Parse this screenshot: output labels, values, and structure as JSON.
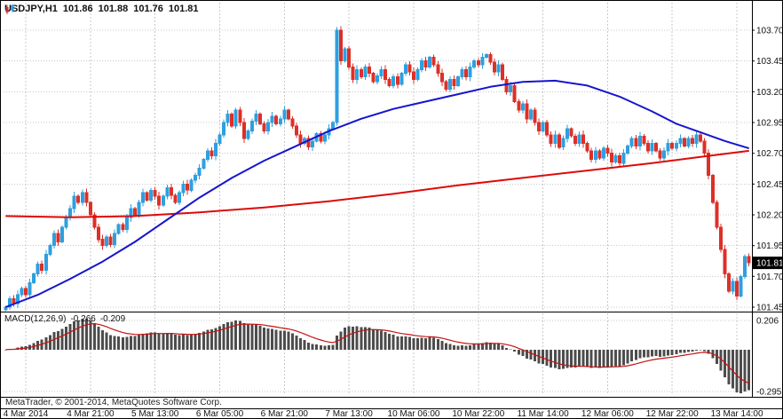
{
  "legend": {
    "symbol_period": "USDJPY,H1",
    "open": "101.86",
    "high": "101.88",
    "low": "101.76",
    "close": "101.81"
  },
  "statusbar": {
    "text": "MetaTrader, © 2001-2014, MetaQuotes Software Corp."
  },
  "price_axis": {
    "ticks": [
      "103.70",
      "103.45",
      "103.20",
      "102.95",
      "102.70",
      "102.45",
      "102.20",
      "101.95",
      "101.70",
      "101.45"
    ],
    "current": "101.81"
  },
  "time_axis": {
    "labels": [
      "4 Mar 2014",
      "4 Mar 21:00",
      "5 Mar 13:00",
      "6 Mar 05:00",
      "6 Mar 21:00",
      "7 Mar 13:00",
      "10 Mar 06:00",
      "10 Mar 22:00",
      "11 Mar 14:00",
      "12 Mar 06:00",
      "12 Mar 22:00",
      "13 Mar 14:00"
    ],
    "indices": [
      5,
      21,
      37,
      53,
      69,
      85,
      101,
      117,
      133,
      149,
      165,
      181
    ]
  },
  "macd_panel": {
    "label": "MACD(12,26,9)",
    "value_main": "-0.266",
    "value_signal": "-0.209"
  },
  "colors": {
    "up": "#2e9fdf",
    "down": "#dc3028",
    "ma_blue": "#1515cf",
    "ma_red": "#dc0a0a",
    "grid": "#c8c8c8",
    "macd_bar": "#4d4d4d",
    "macd_signal": "#c81010",
    "badge_bg": "#000000",
    "badge_text": "#ffffff",
    "border": "#000000",
    "text": "#111111"
  },
  "chart_data": [
    {
      "type": "candlestick",
      "title": "USDJPY,H1",
      "start": "4 Mar 2014 00:00",
      "interval_hours": 1,
      "ylim": [
        101.45,
        103.7
      ],
      "closes": [
        101.45,
        101.52,
        101.48,
        101.55,
        101.6,
        101.55,
        101.65,
        101.72,
        101.8,
        101.75,
        101.88,
        101.95,
        102.05,
        101.98,
        102.1,
        102.18,
        102.25,
        102.35,
        102.3,
        102.38,
        102.3,
        102.2,
        102.1,
        102.0,
        101.95,
        102.02,
        101.96,
        102.05,
        102.12,
        102.08,
        102.18,
        102.25,
        102.2,
        102.3,
        102.38,
        102.32,
        102.4,
        102.35,
        102.28,
        102.35,
        102.42,
        102.36,
        102.3,
        102.38,
        102.45,
        102.4,
        102.48,
        102.52,
        102.58,
        102.65,
        102.72,
        102.68,
        102.78,
        102.85,
        102.95,
        103.02,
        102.92,
        103.05,
        102.95,
        102.82,
        102.88,
        102.96,
        103.02,
        102.94,
        102.88,
        102.95,
        103.0,
        102.94,
        102.98,
        103.05,
        102.98,
        102.92,
        102.85,
        102.78,
        102.82,
        102.75,
        102.8,
        102.86,
        102.8,
        102.85,
        102.9,
        102.95,
        103.7,
        103.45,
        103.55,
        103.4,
        103.3,
        103.38,
        103.32,
        103.4,
        103.35,
        103.28,
        103.33,
        103.38,
        103.3,
        103.25,
        103.32,
        103.26,
        103.35,
        103.42,
        103.36,
        103.3,
        103.38,
        103.45,
        103.4,
        103.48,
        103.42,
        103.35,
        103.28,
        103.22,
        103.3,
        103.25,
        103.32,
        103.38,
        103.32,
        103.4,
        103.45,
        103.42,
        103.48,
        103.5,
        103.44,
        103.36,
        103.42,
        103.3,
        103.2,
        103.25,
        103.12,
        103.05,
        103.1,
        102.98,
        103.05,
        102.95,
        102.88,
        102.95,
        102.85,
        102.78,
        102.85,
        102.75,
        102.82,
        102.9,
        102.84,
        102.78,
        102.85,
        102.78,
        102.72,
        102.65,
        102.72,
        102.66,
        102.74,
        102.7,
        102.63,
        102.68,
        102.62,
        102.7,
        102.76,
        102.82,
        102.76,
        102.84,
        102.78,
        102.72,
        102.78,
        102.72,
        102.66,
        102.72,
        102.78,
        102.74,
        102.78,
        102.82,
        102.76,
        102.82,
        102.78,
        102.85,
        102.8,
        102.7,
        102.52,
        102.3,
        102.1,
        101.92,
        101.72,
        101.58,
        101.66,
        101.54,
        101.7,
        101.86,
        101.81
      ],
      "moving_averages": [
        {
          "name": "ma-red-slow",
          "color": "#dc0a0a",
          "points": [
            [
              0,
              102.19
            ],
            [
              16,
              102.18
            ],
            [
              32,
              102.19
            ],
            [
              48,
              102.22
            ],
            [
              64,
              102.26
            ],
            [
              80,
              102.31
            ],
            [
              96,
              102.37
            ],
            [
              112,
              102.44
            ],
            [
              128,
              102.5
            ],
            [
              144,
              102.56
            ],
            [
              160,
              102.62
            ],
            [
              172,
              102.67
            ],
            [
              184,
              102.72
            ]
          ]
        },
        {
          "name": "ma-blue",
          "color": "#1515cf",
          "points": [
            [
              0,
              101.45
            ],
            [
              8,
              101.55
            ],
            [
              16,
              101.68
            ],
            [
              24,
              101.82
            ],
            [
              32,
              101.98
            ],
            [
              40,
              102.16
            ],
            [
              48,
              102.34
            ],
            [
              56,
              102.5
            ],
            [
              64,
              102.64
            ],
            [
              72,
              102.76
            ],
            [
              80,
              102.88
            ],
            [
              88,
              102.98
            ],
            [
              96,
              103.06
            ],
            [
              104,
              103.12
            ],
            [
              112,
              103.18
            ],
            [
              120,
              103.24
            ],
            [
              128,
              103.28
            ],
            [
              136,
              103.29
            ],
            [
              144,
              103.25
            ],
            [
              152,
              103.16
            ],
            [
              160,
              103.04
            ],
            [
              166,
              102.94
            ],
            [
              172,
              102.87
            ],
            [
              178,
              102.8
            ],
            [
              184,
              102.74
            ]
          ]
        }
      ]
    },
    {
      "type": "bar",
      "name": "MACD(12,26,9)",
      "ylim": [
        -0.315,
        0.25
      ],
      "scale_labels": [
        "0.206",
        "-0.295"
      ],
      "last_values": {
        "main": -0.266,
        "signal": -0.209
      },
      "periods": {
        "fast": 12,
        "slow": 26,
        "signal": 9
      }
    }
  ]
}
